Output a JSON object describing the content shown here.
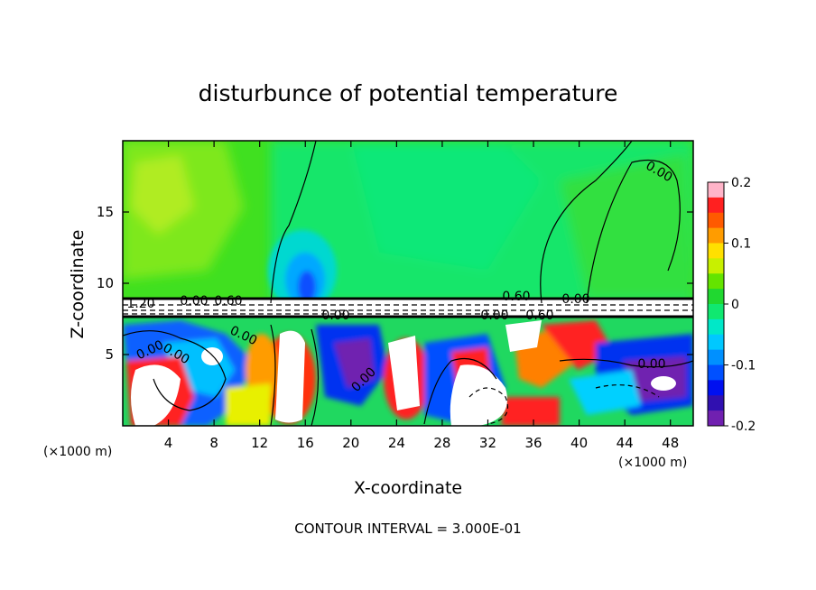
{
  "chart_data": {
    "type": "heatmap",
    "title": "disturbunce of potential temperature",
    "xlabel": "X-coordinate",
    "ylabel": "Z-coordinate",
    "x_unit_label": "(×1000 m)",
    "x_unit_label_right": "(×1000 m)",
    "xlim": [
      0,
      50
    ],
    "ylim": [
      0,
      20
    ],
    "x_ticks": [
      4,
      8,
      12,
      16,
      20,
      24,
      28,
      32,
      36,
      40,
      44,
      48
    ],
    "y_ticks": [
      5,
      10,
      15
    ],
    "footer": "CONTOUR INTERVAL = 3.000E-01",
    "colorbar": {
      "range": [
        -0.2,
        0.2
      ],
      "tick_labels": [
        "0.2",
        "0.1",
        "0",
        "-0.1",
        "-0.2"
      ],
      "tick_values": [
        0.2,
        0.1,
        0,
        -0.1,
        -0.2
      ],
      "colors": [
        "#ffb4c8",
        "#ff2020",
        "#ff5a00",
        "#ff9c00",
        "#ffe000",
        "#c8f000",
        "#64e400",
        "#20d830",
        "#10e870",
        "#00e8c8",
        "#00c8ff",
        "#0090ff",
        "#0050ff",
        "#0010f0",
        "#3010b0",
        "#7020b0"
      ]
    },
    "contour_labels": [
      "1.20",
      "0.00",
      "0.60",
      "0.00",
      "0.60",
      "0.00",
      "0.60",
      "0.00",
      "0.00",
      "0.00",
      "0.00",
      "0.00",
      "0.00",
      "0.00"
    ],
    "inversion_band_z": [
      7.8,
      8.9
    ]
  }
}
